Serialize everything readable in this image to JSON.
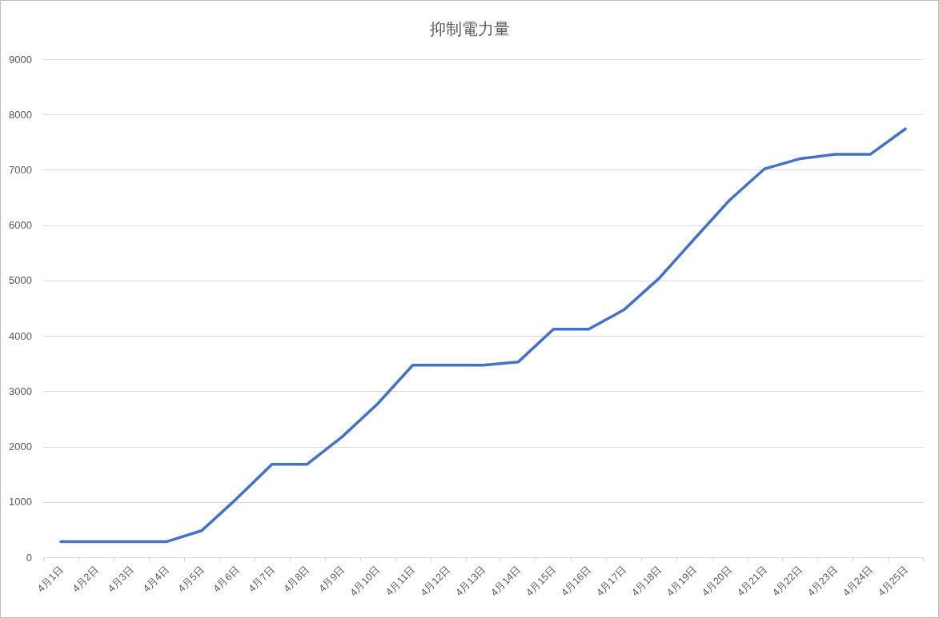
{
  "chart_data": {
    "type": "line",
    "title": "抑制電力量",
    "categories": [
      "4月1日",
      "4月2日",
      "4月3日",
      "4月4日",
      "4月5日",
      "4月6日",
      "4月7日",
      "4月8日",
      "4月9日",
      "4月10日",
      "4月11日",
      "4月12日",
      "4月13日",
      "4月14日",
      "4月15日",
      "4月16日",
      "4月17日",
      "4月18日",
      "4月19日",
      "4月20日",
      "4月21日",
      "4月22日",
      "4月23日",
      "4月24日",
      "4月25日"
    ],
    "series": [
      {
        "color": "#4472c4",
        "values": [
          280,
          280,
          280,
          280,
          480,
          1060,
          1680,
          1680,
          2180,
          2770,
          3470,
          3470,
          3470,
          3530,
          4120,
          4120,
          4470,
          5040,
          5750,
          6450,
          7020,
          7200,
          7280,
          7280,
          7740
        ]
      }
    ],
    "ylim": [
      0,
      9000
    ],
    "yticks": [
      0,
      1000,
      2000,
      3000,
      4000,
      5000,
      6000,
      7000,
      8000,
      9000
    ],
    "grid": "y"
  }
}
